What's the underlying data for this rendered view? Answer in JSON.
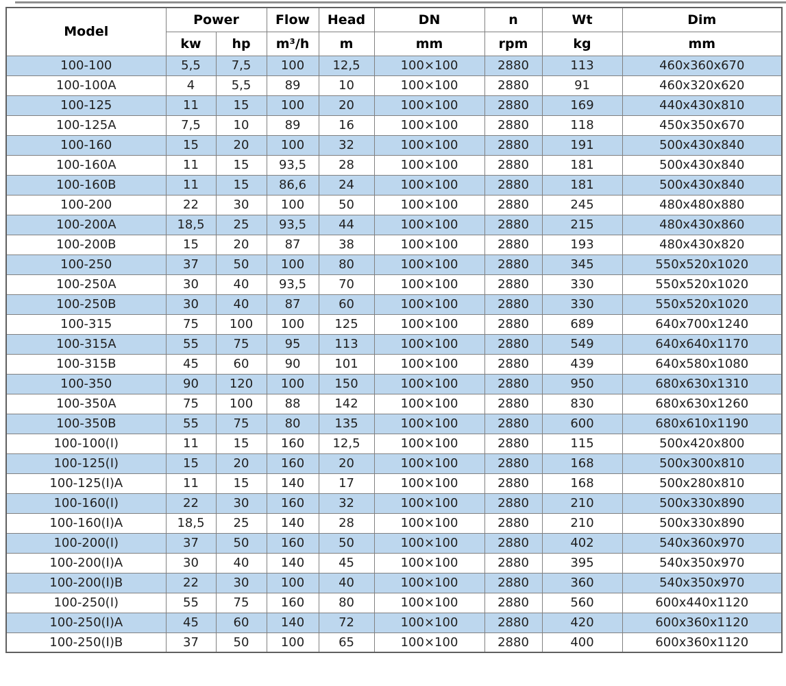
{
  "colors": {
    "row_stripe": "#bdd7ee",
    "row_plain": "#ffffff",
    "grid_line": "#808080",
    "outer_border": "#5f5f5f",
    "text": "#1f1f1f"
  },
  "chart_data": {
    "type": "table",
    "header_row_1": [
      {
        "label": "Model"
      },
      {
        "label": "Power"
      },
      {
        "label": "Flow"
      },
      {
        "label": "Head"
      },
      {
        "label": "DN"
      },
      {
        "label": "n"
      },
      {
        "label": "Wt"
      },
      {
        "label": "Dim"
      }
    ],
    "header_row_2": [
      "kw",
      "hp",
      "m³/h",
      "m",
      "mm",
      "rpm",
      "kg",
      "mm"
    ],
    "rows": [
      [
        "100-100",
        "5,5",
        "7,5",
        "100",
        "12,5",
        "100×100",
        "2880",
        "113",
        "460x360x670"
      ],
      [
        "100-100A",
        "4",
        "5,5",
        "89",
        "10",
        "100×100",
        "2880",
        "91",
        "460x320x620"
      ],
      [
        "100-125",
        "11",
        "15",
        "100",
        "20",
        "100×100",
        "2880",
        "169",
        "440x430x810"
      ],
      [
        "100-125A",
        "7,5",
        "10",
        "89",
        "16",
        "100×100",
        "2880",
        "118",
        "450x350x670"
      ],
      [
        "100-160",
        "15",
        "20",
        "100",
        "32",
        "100×100",
        "2880",
        "191",
        "500x430x840"
      ],
      [
        "100-160A",
        "11",
        "15",
        "93,5",
        "28",
        "100×100",
        "2880",
        "181",
        "500x430x840"
      ],
      [
        "100-160B",
        "11",
        "15",
        "86,6",
        "24",
        "100×100",
        "2880",
        "181",
        "500x430x840"
      ],
      [
        "100-200",
        "22",
        "30",
        "100",
        "50",
        "100×100",
        "2880",
        "245",
        "480x480x880"
      ],
      [
        "100-200A",
        "18,5",
        "25",
        "93,5",
        "44",
        "100×100",
        "2880",
        "215",
        "480x430x860"
      ],
      [
        "100-200B",
        "15",
        "20",
        "87",
        "38",
        "100×100",
        "2880",
        "193",
        "480x430x820"
      ],
      [
        "100-250",
        "37",
        "50",
        "100",
        "80",
        "100×100",
        "2880",
        "345",
        "550x520x1020"
      ],
      [
        "100-250A",
        "30",
        "40",
        "93,5",
        "70",
        "100×100",
        "2880",
        "330",
        "550x520x1020"
      ],
      [
        "100-250B",
        "30",
        "40",
        "87",
        "60",
        "100×100",
        "2880",
        "330",
        "550x520x1020"
      ],
      [
        "100-315",
        "75",
        "100",
        "100",
        "125",
        "100×100",
        "2880",
        "689",
        "640x700x1240"
      ],
      [
        "100-315A",
        "55",
        "75",
        "95",
        "113",
        "100×100",
        "2880",
        "549",
        "640x640x1170"
      ],
      [
        "100-315B",
        "45",
        "60",
        "90",
        "101",
        "100×100",
        "2880",
        "439",
        "640x580x1080"
      ],
      [
        "100-350",
        "90",
        "120",
        "100",
        "150",
        "100×100",
        "2880",
        "950",
        "680x630x1310"
      ],
      [
        "100-350A",
        "75",
        "100",
        "88",
        "142",
        "100×100",
        "2880",
        "830",
        "680x630x1260"
      ],
      [
        "100-350B",
        "55",
        "75",
        "80",
        "135",
        "100×100",
        "2880",
        "600",
        "680x610x1190"
      ],
      [
        "100-100(I)",
        "11",
        "15",
        "160",
        "12,5",
        "100×100",
        "2880",
        "115",
        "500x420x800"
      ],
      [
        "100-125(I)",
        "15",
        "20",
        "160",
        "20",
        "100×100",
        "2880",
        "168",
        "500x300x810"
      ],
      [
        "100-125(I)A",
        "11",
        "15",
        "140",
        "17",
        "100×100",
        "2880",
        "168",
        "500x280x810"
      ],
      [
        "100-160(I)",
        "22",
        "30",
        "160",
        "32",
        "100×100",
        "2880",
        "210",
        "500x330x890"
      ],
      [
        "100-160(I)A",
        "18,5",
        "25",
        "140",
        "28",
        "100×100",
        "2880",
        "210",
        "500x330x890"
      ],
      [
        "100-200(I)",
        "37",
        "50",
        "160",
        "50",
        "100×100",
        "2880",
        "402",
        "540x360x970"
      ],
      [
        "100-200(I)A",
        "30",
        "40",
        "140",
        "45",
        "100×100",
        "2880",
        "395",
        "540x350x970"
      ],
      [
        "100-200(I)B",
        "22",
        "30",
        "100",
        "40",
        "100×100",
        "2880",
        "360",
        "540x350x970"
      ],
      [
        "100-250(I)",
        "55",
        "75",
        "160",
        "80",
        "100×100",
        "2880",
        "560",
        "600x440x1120"
      ],
      [
        "100-250(I)A",
        "45",
        "60",
        "140",
        "72",
        "100×100",
        "2880",
        "420",
        "600x360x1120"
      ],
      [
        "100-250(I)B",
        "37",
        "50",
        "100",
        "65",
        "100×100",
        "2880",
        "400",
        "600x360x1120"
      ]
    ]
  }
}
